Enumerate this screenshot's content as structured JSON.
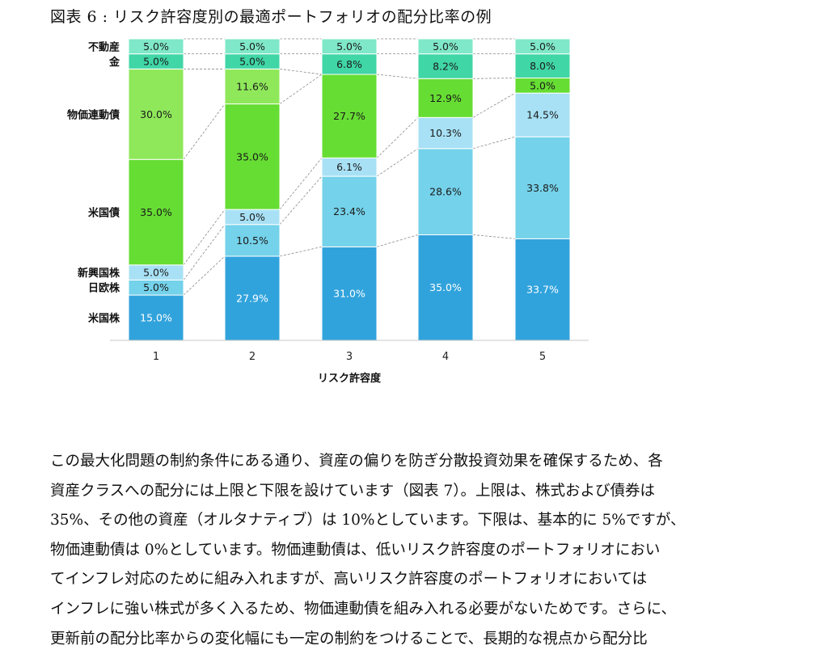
{
  "figure": {
    "title": "図表 6 : リスク許容度別の最適ポートフォリオの配分比率の例"
  },
  "chart_data": {
    "type": "bar",
    "stacked": true,
    "percent_stacked": true,
    "categories": [
      "1",
      "2",
      "3",
      "4",
      "5"
    ],
    "xlabel": "リスク許容度",
    "ylabel": "",
    "ylim": [
      0,
      100
    ],
    "legend_placement": "left, labels beside first bar",
    "grid": false,
    "series": [
      {
        "name": "米国株",
        "values": [
          15.0,
          27.9,
          31.0,
          35.0,
          33.7
        ],
        "labels": [
          "15.0%",
          "27.9%",
          "31.0%",
          "35.0%",
          "33.7%"
        ],
        "color": "#31A3DC",
        "label_color": "#ffffff"
      },
      {
        "name": "日欧株",
        "values": [
          5.0,
          10.5,
          23.4,
          28.6,
          33.8
        ],
        "labels": [
          "5.0%",
          "10.5%",
          "23.4%",
          "28.6%",
          "33.8%"
        ],
        "color": "#74D2EA",
        "label_color": "#1a1a1a"
      },
      {
        "name": "新興国株",
        "values": [
          5.0,
          5.0,
          6.1,
          10.3,
          14.5
        ],
        "labels": [
          "5.0%",
          "5.0%",
          "6.1%",
          "10.3%",
          "14.5%"
        ],
        "color": "#A8E1F5",
        "label_color": "#1a1a1a"
      },
      {
        "name": "米国債",
        "values": [
          35.0,
          35.0,
          27.7,
          12.9,
          5.0
        ],
        "labels": [
          "35.0%",
          "35.0%",
          "27.7%",
          "12.9%",
          "5.0%"
        ],
        "color": "#66DD33",
        "label_color": "#1a1a1a"
      },
      {
        "name": "物価連動債",
        "values": [
          30.0,
          11.6,
          0,
          0,
          0
        ],
        "labels": [
          "30.0%",
          "11.6%",
          "",
          "",
          ""
        ],
        "color": "#8FE85A",
        "label_color": "#1a1a1a"
      },
      {
        "name": "金",
        "values": [
          5.0,
          5.0,
          6.8,
          8.2,
          8.0
        ],
        "labels": [
          "5.0%",
          "5.0%",
          "6.8%",
          "8.2%",
          "8.0%"
        ],
        "color": "#40D6A6",
        "label_color": "#1a1a1a"
      },
      {
        "name": "不動産",
        "values": [
          5.0,
          5.0,
          5.0,
          5.0,
          5.0
        ],
        "labels": [
          "5.0%",
          "5.0%",
          "5.0%",
          "5.0%",
          "5.0%"
        ],
        "color": "#7FE8C8",
        "label_color": "#1a1a1a"
      }
    ]
  },
  "body": {
    "lines": [
      "この最大化問題の制約条件にある通り、資産の偏りを防ぎ分散投資効果を確保するため、各",
      "資産クラスへの配分には上限と下限を設けています（図表 7）。上限は、株式および債券は",
      "35%、その他の資産（オルタナティブ）は 10%としています。下限は、基本的に 5%ですが、",
      "物価連動債は 0%としています。物価連動債は、低いリスク許容度のポートフォリオにおい",
      "てインフレ対応のために組み入れますが、高いリスク許容度のポートフォリオにおいては",
      "インフレに強い株式が多く入るため、物価連動債を組み入れる必要がないためです。さらに、",
      "更新前の配分比率からの変化幅にも一定の制約をつけることで、長期的な視点から配分比"
    ]
  }
}
